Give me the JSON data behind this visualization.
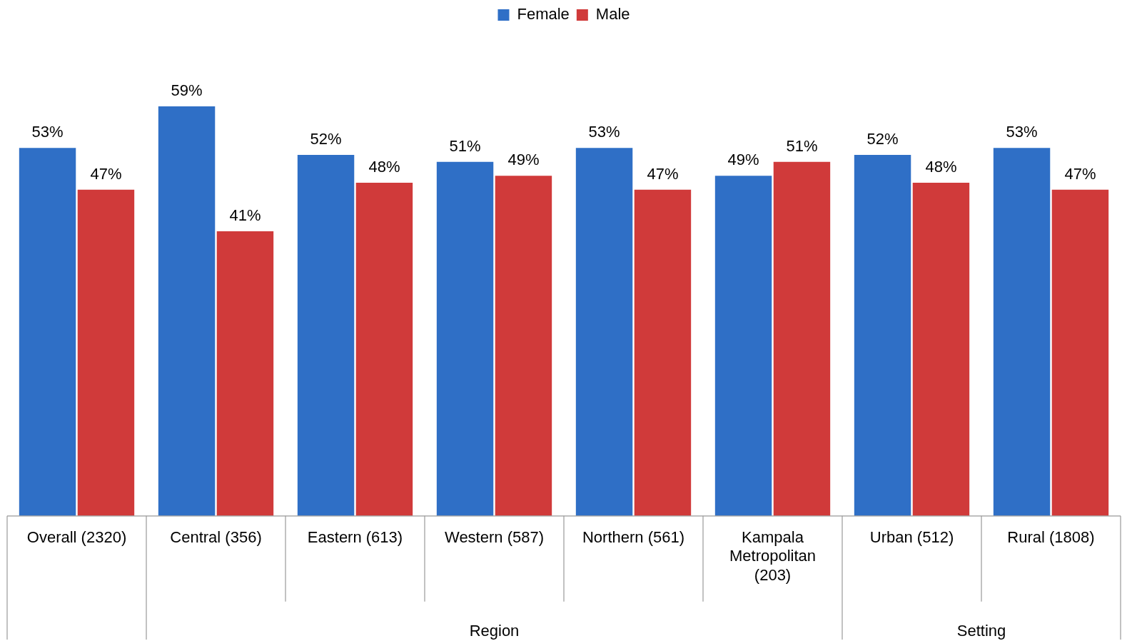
{
  "chart_data": {
    "type": "bar",
    "categories": [
      "Overall (2320)",
      "Central (356)",
      "Eastern (613)",
      "Western (587)",
      "Northern (561)",
      "Kampala Metropolitan (203)",
      "Urban (512)",
      "Rural (1808)"
    ],
    "series": [
      {
        "name": "Female",
        "color": "#2f6fc6",
        "values": [
          53,
          59,
          52,
          51,
          53,
          49,
          52,
          53
        ],
        "value_labels": [
          "53%",
          "59%",
          "52%",
          "51%",
          "53%",
          "49%",
          "52%",
          "53%"
        ]
      },
      {
        "name": "Male",
        "color": "#d03a3a",
        "values": [
          47,
          41,
          48,
          49,
          47,
          51,
          48,
          47
        ],
        "value_labels": [
          "47%",
          "41%",
          "48%",
          "49%",
          "47%",
          "51%",
          "48%",
          "47%"
        ]
      }
    ],
    "annotations": [
      "Region",
      "Setting"
    ],
    "legend": "top"
  }
}
